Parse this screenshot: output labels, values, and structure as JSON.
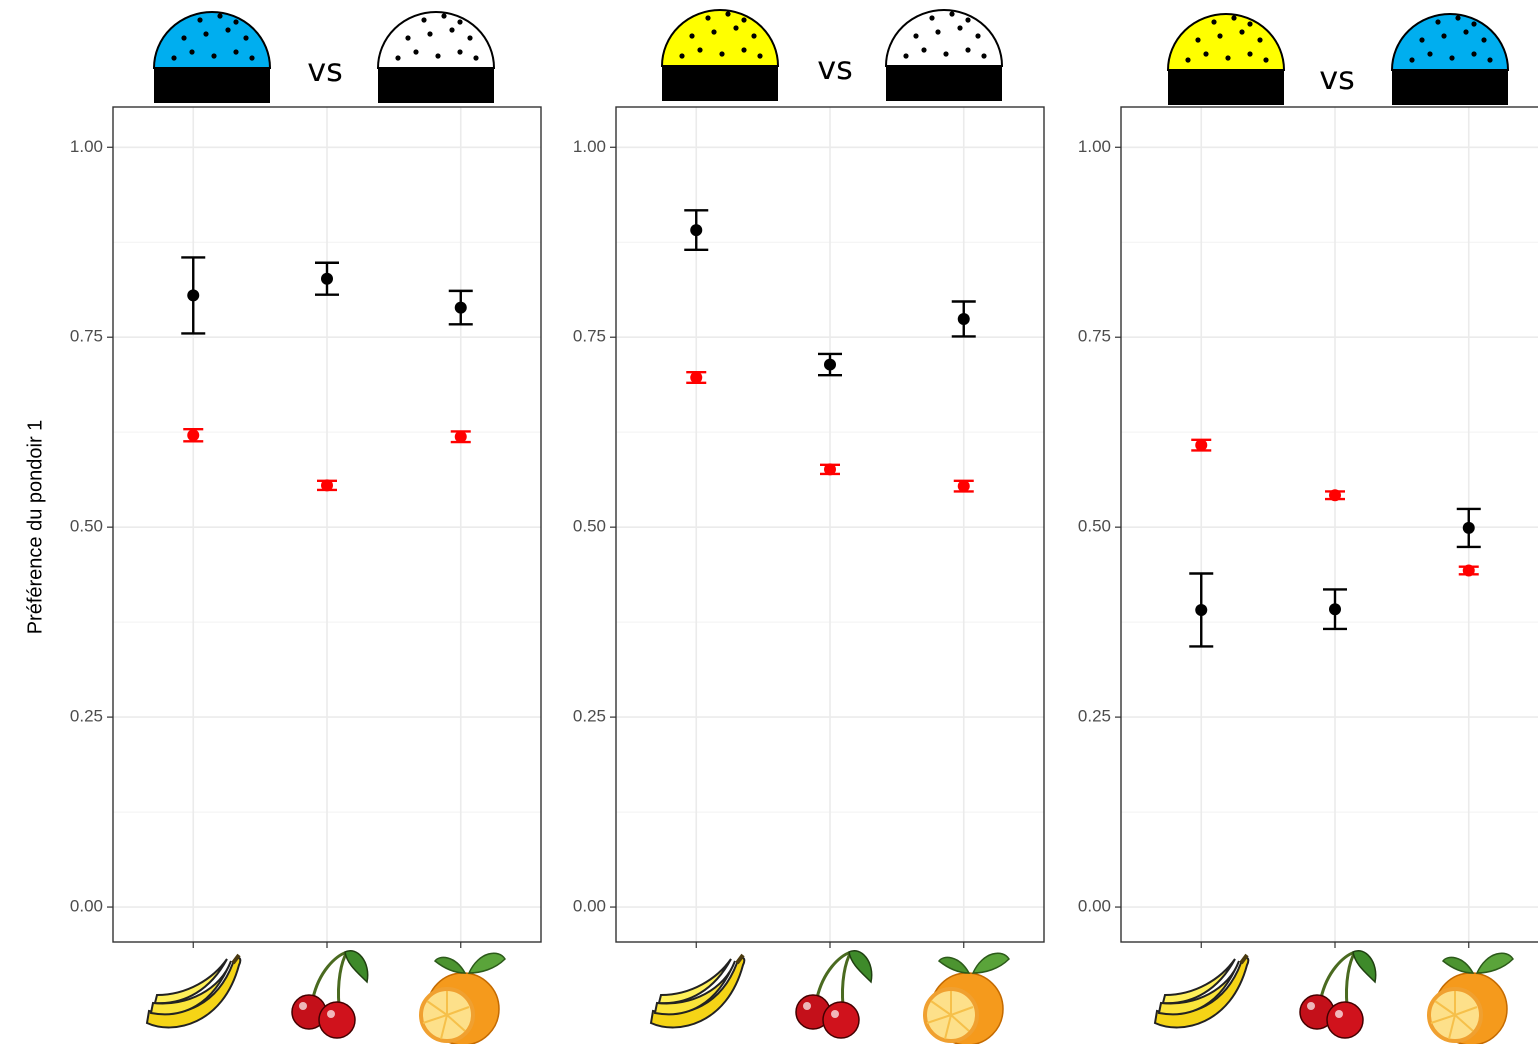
{
  "chart_data": [
    {
      "type": "errorbar",
      "title": "vs",
      "y_label": "Préférence du pondoir 1",
      "categories": [
        null,
        null,
        null
      ],
      "series": [
        {
          "color": "#000000",
          "values": [
            0.805,
            0.827,
            0.789
          ],
          "errors": [
            0.05,
            0.021,
            0.022
          ]
        },
        {
          "color": "#ff0000",
          "values": [
            0.621,
            0.555,
            0.619
          ],
          "errors": [
            0.008,
            0.006,
            0.007
          ]
        }
      ],
      "ylim": [
        -0.046,
        1.053
      ],
      "yticks": [
        {
          "value": 0,
          "label": "0.00"
        },
        {
          "value": 0.25,
          "label": "0.25"
        },
        {
          "value": 0.5,
          "label": "0.50"
        },
        {
          "value": 0.75,
          "label": "0.75"
        },
        {
          "value": 1,
          "label": "1.00"
        }
      ],
      "minor_yticks": [
        0.125,
        0.375,
        0.625,
        0.875
      ],
      "grid": true
    },
    {
      "type": "errorbar",
      "title": "vs",
      "categories": [
        null,
        null,
        null
      ],
      "series": [
        {
          "color": "#000000",
          "values": [
            0.891,
            0.714,
            0.774
          ],
          "errors": [
            0.026,
            0.014,
            0.023
          ]
        },
        {
          "color": "#ff0000",
          "values": [
            0.697,
            0.576,
            0.554
          ],
          "errors": [
            0.007,
            0.006,
            0.007
          ]
        }
      ],
      "ylim": [
        -0.046,
        1.053
      ],
      "yticks": [
        {
          "value": 0,
          "label": "0.00"
        },
        {
          "value": 0.25,
          "label": "0.25"
        },
        {
          "value": 0.5,
          "label": "0.50"
        },
        {
          "value": 0.75,
          "label": "0.75"
        },
        {
          "value": 1,
          "label": "1.00"
        }
      ],
      "minor_yticks": [
        0.125,
        0.375,
        0.625,
        0.875
      ],
      "grid": true
    },
    {
      "type": "errorbar",
      "title": "vs",
      "categories": [
        null,
        null,
        null
      ],
      "series": [
        {
          "color": "#000000",
          "values": [
            0.391,
            0.392,
            0.499
          ],
          "errors": [
            0.048,
            0.026,
            0.025
          ]
        },
        {
          "color": "#ff0000",
          "values": [
            0.608,
            0.542,
            0.443
          ],
          "errors": [
            0.007,
            0.005,
            0.005
          ]
        }
      ],
      "ylim": [
        -0.046,
        1.053
      ],
      "yticks": [
        {
          "value": 0,
          "label": "0.00"
        },
        {
          "value": 0.25,
          "label": "0.25"
        },
        {
          "value": 0.5,
          "label": "0.50"
        },
        {
          "value": 0.75,
          "label": "0.75"
        },
        {
          "value": 1,
          "label": "1.00"
        }
      ],
      "minor_yticks": [
        0.125,
        0.375,
        0.625,
        0.875
      ],
      "grid": true
    }
  ]
}
